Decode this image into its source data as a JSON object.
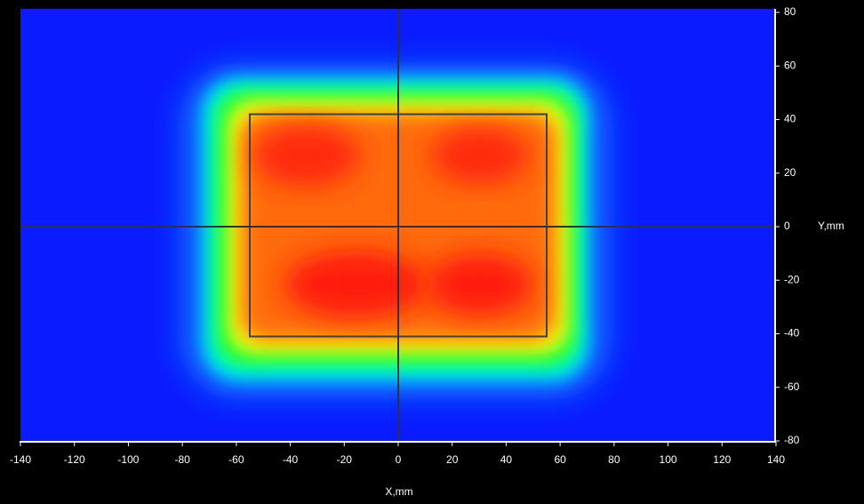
{
  "chart_data": {
    "type": "heatmap",
    "x_label": "X,mm",
    "y_label": "Y,mm",
    "xlim": [
      -140,
      140
    ],
    "ylim": [
      -80,
      80
    ],
    "xticks": [
      -140,
      -120,
      -100,
      -80,
      -60,
      -40,
      -20,
      0,
      20,
      40,
      60,
      80,
      100,
      120,
      140
    ],
    "yticks": [
      -80,
      -60,
      -40,
      -20,
      0,
      20,
      40,
      60,
      80
    ],
    "crosshair": {
      "x": 0,
      "y": 0
    },
    "region": {
      "x": [
        -55,
        55
      ],
      "y": [
        -41,
        42
      ]
    }
  }
}
